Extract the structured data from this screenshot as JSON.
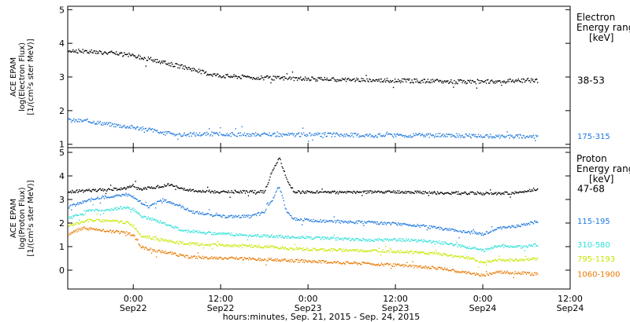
{
  "x_axis": {
    "label": "hours:minutes, Sep. 21, 2015 - Sep. 24, 2015",
    "ticks": [
      {
        "time": "0:00",
        "date": "Sep22",
        "hours": 24
      },
      {
        "time": "12:00",
        "date": "Sep22",
        "hours": 36
      },
      {
        "time": "0:00",
        "date": "Sep23",
        "hours": 48
      },
      {
        "time": "12:00",
        "date": "Sep23",
        "hours": 60
      },
      {
        "time": "0:00",
        "date": "Sep24",
        "hours": 72
      },
      {
        "time": "12:00",
        "date": "Sep24",
        "hours": 84
      }
    ]
  },
  "chart_data": [
    {
      "type": "scatter",
      "panel": "electron",
      "ylabel_lines": [
        "ACE EPAM",
        "log(Electron Flux)",
        "[1/(cm²s ster MeV)]"
      ],
      "xlim_hours": [
        15,
        84
      ],
      "ylim": [
        0.9,
        5.1
      ],
      "yticks": [
        1,
        2,
        3,
        4,
        5
      ],
      "legend_title": [
        "Electron",
        "Energy ranges",
        "[keV]"
      ],
      "series": [
        {
          "name": "38-53",
          "color": "#000000",
          "points": [
            [
              15,
              3.8
            ],
            [
              18,
              3.77
            ],
            [
              21,
              3.72
            ],
            [
              24,
              3.65
            ],
            [
              26,
              3.55
            ],
            [
              28,
              3.45
            ],
            [
              30,
              3.35
            ],
            [
              32,
              3.25
            ],
            [
              34,
              3.12
            ],
            [
              36,
              3.05
            ],
            [
              40,
              3.0
            ],
            [
              46,
              2.97
            ],
            [
              54,
              2.93
            ],
            [
              62,
              2.9
            ],
            [
              66,
              2.88
            ],
            [
              70,
              2.87
            ],
            [
              74,
              2.88
            ],
            [
              78,
              2.92
            ],
            [
              79.5,
              2.9
            ]
          ]
        },
        {
          "name": "175-315",
          "color": "#1e78dc",
          "points": [
            [
              15,
              1.73
            ],
            [
              18,
              1.7
            ],
            [
              21,
              1.6
            ],
            [
              24,
              1.52
            ],
            [
              26,
              1.45
            ],
            [
              28,
              1.35
            ],
            [
              30,
              1.3
            ],
            [
              34,
              1.32
            ],
            [
              40,
              1.3
            ],
            [
              50,
              1.3
            ],
            [
              58,
              1.28
            ],
            [
              66,
              1.28
            ],
            [
              74,
              1.25
            ],
            [
              79.5,
              1.25
            ]
          ]
        }
      ]
    },
    {
      "type": "scatter",
      "panel": "proton",
      "ylabel_lines": [
        "ACE EPAM",
        "log(Proton Flux)",
        "[1/(cm²s ster MeV)]"
      ],
      "xlim_hours": [
        15,
        84
      ],
      "ylim": [
        -0.8,
        5.2
      ],
      "yticks": [
        0,
        1,
        2,
        3,
        4,
        5
      ],
      "legend_title": [
        "Proton",
        "Energy ranges",
        "[keV]"
      ],
      "series": [
        {
          "name": "47-68",
          "color": "#000000",
          "points": [
            [
              15,
              3.35
            ],
            [
              18,
              3.4
            ],
            [
              21,
              3.45
            ],
            [
              23,
              3.5
            ],
            [
              24,
              3.6
            ],
            [
              25,
              3.45
            ],
            [
              27,
              3.55
            ],
            [
              29,
              3.65
            ],
            [
              30,
              3.55
            ],
            [
              32,
              3.4
            ],
            [
              35,
              3.35
            ],
            [
              40,
              3.35
            ],
            [
              42,
              3.35
            ],
            [
              43,
              4.2
            ],
            [
              44,
              4.8
            ],
            [
              45,
              3.9
            ],
            [
              46,
              3.35
            ],
            [
              52,
              3.32
            ],
            [
              60,
              3.35
            ],
            [
              66,
              3.3
            ],
            [
              72,
              3.28
            ],
            [
              76,
              3.3
            ],
            [
              79.5,
              3.45
            ]
          ]
        },
        {
          "name": "115-195",
          "color": "#1e78dc",
          "points": [
            [
              15,
              2.7
            ],
            [
              17,
              2.9
            ],
            [
              19,
              3.1
            ],
            [
              21,
              3.15
            ],
            [
              23,
              3.25
            ],
            [
              24,
              3.1
            ],
            [
              26,
              2.7
            ],
            [
              28,
              3.0
            ],
            [
              30,
              2.8
            ],
            [
              32,
              2.5
            ],
            [
              36,
              2.3
            ],
            [
              40,
              2.3
            ],
            [
              42,
              2.5
            ],
            [
              43,
              3.0
            ],
            [
              44,
              3.6
            ],
            [
              45,
              2.5
            ],
            [
              46,
              2.2
            ],
            [
              50,
              2.1
            ],
            [
              56,
              2.05
            ],
            [
              62,
              1.95
            ],
            [
              66,
              1.8
            ],
            [
              70,
              1.62
            ],
            [
              72,
              1.55
            ],
            [
              74,
              1.8
            ],
            [
              77,
              1.9
            ],
            [
              79.5,
              2.1
            ]
          ]
        },
        {
          "name": "310-580",
          "color": "#2ee0d8",
          "points": [
            [
              15,
              2.2
            ],
            [
              18,
              2.55
            ],
            [
              21,
              2.6
            ],
            [
              23,
              2.7
            ],
            [
              24,
              2.6
            ],
            [
              25,
              2.3
            ],
            [
              27,
              2.15
            ],
            [
              29,
              1.9
            ],
            [
              31,
              1.7
            ],
            [
              34,
              1.6
            ],
            [
              40,
              1.5
            ],
            [
              48,
              1.4
            ],
            [
              56,
              1.3
            ],
            [
              62,
              1.3
            ],
            [
              66,
              1.2
            ],
            [
              70,
              1.0
            ],
            [
              72,
              0.85
            ],
            [
              74,
              1.05
            ],
            [
              77,
              1.0
            ],
            [
              79.5,
              1.1
            ]
          ]
        },
        {
          "name": "795-1193",
          "color": "#c8e600",
          "points": [
            [
              15,
              1.9
            ],
            [
              18,
              2.15
            ],
            [
              21,
              2.1
            ],
            [
              23,
              2.05
            ],
            [
              24,
              1.9
            ],
            [
              25,
              1.5
            ],
            [
              27,
              1.35
            ],
            [
              29,
              1.25
            ],
            [
              31,
              1.15
            ],
            [
              34,
              1.1
            ],
            [
              40,
              1.05
            ],
            [
              48,
              0.9
            ],
            [
              56,
              0.85
            ],
            [
              62,
              0.8
            ],
            [
              66,
              0.7
            ],
            [
              70,
              0.55
            ],
            [
              72,
              0.35
            ],
            [
              74,
              0.45
            ],
            [
              77,
              0.45
            ],
            [
              79.5,
              0.5
            ]
          ]
        },
        {
          "name": "1060-1900",
          "color": "#e87800",
          "points": [
            [
              15,
              1.55
            ],
            [
              17,
              1.8
            ],
            [
              20,
              1.7
            ],
            [
              23,
              1.6
            ],
            [
              24,
              1.5
            ],
            [
              25,
              1.0
            ],
            [
              27,
              0.85
            ],
            [
              29,
              0.75
            ],
            [
              31,
              0.6
            ],
            [
              34,
              0.55
            ],
            [
              40,
              0.5
            ],
            [
              48,
              0.4
            ],
            [
              56,
              0.3
            ],
            [
              62,
              0.2
            ],
            [
              66,
              0.1
            ],
            [
              70,
              -0.1
            ],
            [
              72,
              -0.2
            ],
            [
              74,
              -0.05
            ],
            [
              77,
              -0.1
            ],
            [
              79.5,
              -0.15
            ]
          ]
        }
      ]
    }
  ]
}
